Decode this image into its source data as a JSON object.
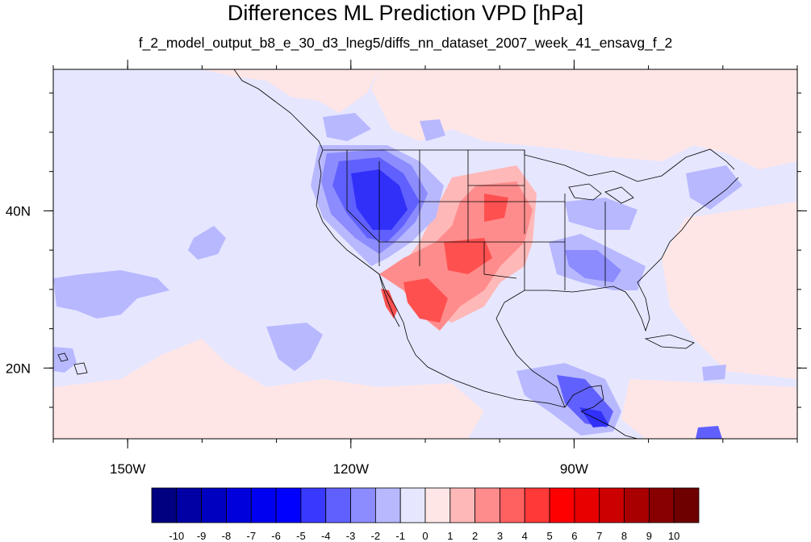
{
  "title": "Differences ML Prediction VPD [hPa]",
  "subtitle": "f_2_model_output_b8_e_30_d3_lneg5/diffs_nn_dataset_2007_week_41_ensavg_f_2",
  "axes": {
    "x_ticks": [
      {
        "value": -150,
        "label": "150W"
      },
      {
        "value": -120,
        "label": "120W"
      },
      {
        "value": -90,
        "label": "90W"
      }
    ],
    "y_ticks": [
      {
        "value": 40,
        "label": "40N"
      },
      {
        "value": 20,
        "label": "20N"
      }
    ],
    "lon_range": [
      -160,
      -60
    ],
    "lat_range": [
      11,
      58
    ]
  },
  "colorbar": {
    "labels": [
      "-10",
      "-9",
      "-8",
      "-7",
      "-6",
      "-5",
      "-4",
      "-3",
      "-2",
      "-1",
      "0",
      "1",
      "2",
      "3",
      "4",
      "5",
      "6",
      "7",
      "8",
      "9",
      "10"
    ],
    "colors": [
      "#000080",
      "#0000A5",
      "#0000C0",
      "#0000DC",
      "#0000F0",
      "#0000FF",
      "#3838FF",
      "#6060FF",
      "#8C8CFF",
      "#B8B8FF",
      "#E6E6FF",
      "#FFE6E6",
      "#FFB8B8",
      "#FF8C8C",
      "#FF6060",
      "#FF3838",
      "#FF0000",
      "#E80000",
      "#CC0000",
      "#A80000",
      "#880000",
      "#6E0000"
    ]
  },
  "field_colors": {
    "background": "#E6E6FF",
    "light_pink": "#FFE6E6",
    "light_blue": "#B8B8FF",
    "mid_blue": "#8C8CFF",
    "blue": "#6060FF",
    "deep_blue": "#3030F8",
    "pink": "#FFB8B8",
    "salmon": "#FF8C8C",
    "red": "#FF5050"
  }
}
